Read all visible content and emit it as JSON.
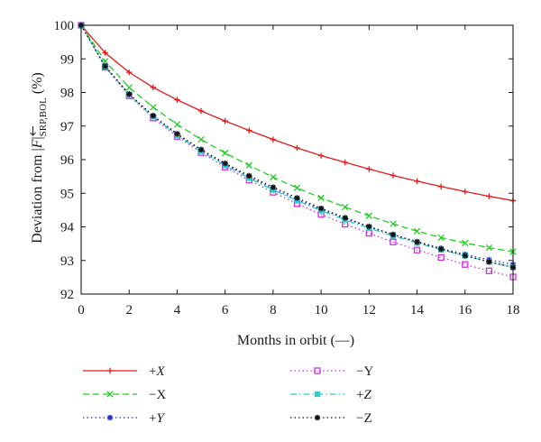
{
  "chart_data": {
    "type": "line",
    "title": "",
    "xlabel": "Months in orbit (—)",
    "ylabel_prefix": "Deviation from |",
    "ylabel_symbol": "F",
    "ylabel_sub": "SRP,BOL",
    "ylabel_suffix": " (%)",
    "xlim": [
      0,
      18
    ],
    "ylim": [
      92,
      100
    ],
    "x_ticks": [
      "0",
      "2",
      "4",
      "6",
      "8",
      "10",
      "12",
      "14",
      "16",
      "18"
    ],
    "y_ticks": [
      "92",
      "93",
      "94",
      "95",
      "96",
      "97",
      "98",
      "99",
      "100"
    ],
    "grid": false,
    "legend_position": "below",
    "x": [
      0,
      1,
      2,
      3,
      4,
      5,
      6,
      7,
      8,
      9,
      10,
      11,
      12,
      13,
      14,
      15,
      16,
      17,
      18
    ],
    "series": [
      {
        "name": "+X",
        "italic": true,
        "color": "#e41a1c",
        "dash": "solid",
        "marker": "plus",
        "values": [
          100,
          99.18,
          98.6,
          98.15,
          97.78,
          97.45,
          97.15,
          96.87,
          96.6,
          96.35,
          96.12,
          95.92,
          95.72,
          95.53,
          95.36,
          95.2,
          95.05,
          94.91,
          94.78
        ]
      },
      {
        "name": "−X",
        "italic": false,
        "color": "#22cc22",
        "dash": "dashed",
        "marker": "x",
        "values": [
          100,
          98.93,
          98.15,
          97.56,
          97.05,
          96.6,
          96.2,
          95.83,
          95.48,
          95.16,
          94.86,
          94.59,
          94.33,
          94.09,
          93.87,
          93.68,
          93.52,
          93.38,
          93.26
        ]
      },
      {
        "name": "+Y",
        "italic": true,
        "color": "#2233cc",
        "dash": "dotted",
        "marker": "star",
        "values": [
          100,
          98.79,
          97.95,
          97.3,
          96.75,
          96.28,
          95.86,
          95.48,
          95.13,
          94.81,
          94.52,
          94.25,
          94.0,
          93.77,
          93.56,
          93.36,
          93.18,
          93.02,
          92.88
        ]
      },
      {
        "name": "−Y",
        "italic": false,
        "color": "#cc33dd",
        "dash": "dotted",
        "marker": "square",
        "values": [
          100,
          98.75,
          97.9,
          97.24,
          96.69,
          96.21,
          95.78,
          95.39,
          95.03,
          94.69,
          94.37,
          94.08,
          93.81,
          93.55,
          93.31,
          93.09,
          92.88,
          92.69,
          92.51
        ]
      },
      {
        "name": "+Z",
        "italic": true,
        "color": "#33cccc",
        "dash": "dashdot",
        "marker": "filledsquare",
        "values": [
          100,
          98.77,
          97.93,
          97.28,
          96.73,
          96.25,
          95.83,
          95.45,
          95.1,
          94.78,
          94.48,
          94.21,
          93.96,
          93.73,
          93.52,
          93.32,
          93.14,
          92.96,
          92.8
        ]
      },
      {
        "name": "−Z",
        "italic": false,
        "color": "#111111",
        "dash": "dotted",
        "marker": "star",
        "values": [
          100,
          98.78,
          97.95,
          97.31,
          96.77,
          96.3,
          95.89,
          95.52,
          95.18,
          94.86,
          94.55,
          94.27,
          94.01,
          93.77,
          93.55,
          93.34,
          93.14,
          92.96,
          92.79
        ]
      }
    ]
  }
}
